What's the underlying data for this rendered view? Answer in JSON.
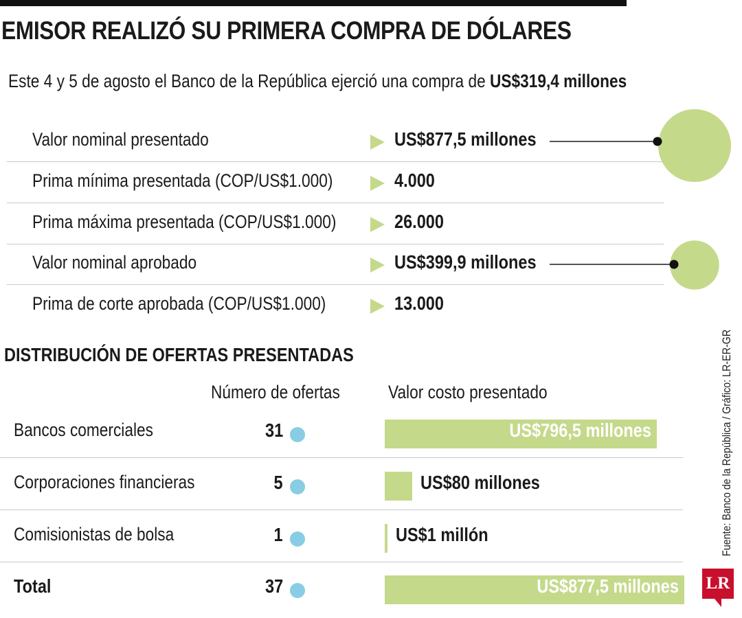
{
  "title": "EMISOR REALIZÓ SU PRIMERA COMPRA DE DÓLARES",
  "subtitle": {
    "text": "Este 4 y 5 de agosto el Banco de la República ejerció una compra de ",
    "highlight": "US$319,4 millones"
  },
  "summary_rows": [
    {
      "label": "Valor nominal presentado",
      "value": "US$877,5 millones"
    },
    {
      "label": "Prima mínima presentada (COP/US$1.000)",
      "value": "4.000"
    },
    {
      "label": "Prima máxima presentada (COP/US$1.000)",
      "value": "26.000"
    },
    {
      "label": "Valor nominal aprobado",
      "value": "US$399,9 millones"
    },
    {
      "label": "Prima de corte aprobada (COP/US$1.000)",
      "value": "13.000"
    }
  ],
  "bubbles": [
    {
      "for": "Valor nominal presentado",
      "value": 877.5
    },
    {
      "for": "Valor nominal aprobado",
      "value": 399.9
    }
  ],
  "section_title": "DISTRIBUCIÓN DE OFERTAS PRESENTADAS",
  "columns": {
    "offers": "Número de ofertas",
    "cost": "Valor costo presentado"
  },
  "chart_data": {
    "type": "bar",
    "categories": [
      "Bancos comerciales",
      "Corporaciones financieras",
      "Comisionistas de bolsa",
      "Total"
    ],
    "offers": [
      31,
      5,
      1,
      37
    ],
    "values": [
      796.5,
      80,
      1,
      877.5
    ],
    "value_labels": [
      "US$796,5 millones",
      "US$80 millones",
      "US$1 millón",
      "US$877,5 millones"
    ]
  },
  "distribution_rows": [
    {
      "label": "Bancos comerciales",
      "offers": "31",
      "value_label": "US$796,5 millones"
    },
    {
      "label": "Corporaciones financieras",
      "offers": "5",
      "value_label": "US$80 millones"
    },
    {
      "label": "Comisionistas de bolsa",
      "offers": "1",
      "value_label": "US$1 millón"
    },
    {
      "label": "Total",
      "offers": "37",
      "value_label": "US$877,5 millones"
    }
  ],
  "source": "Fuente: Banco de la República / Gráfico: LR-ER-GR",
  "logo": "LR",
  "colors": {
    "bar": "#c5d98b",
    "dot": "#88cde3",
    "logo": "#c8102e"
  }
}
